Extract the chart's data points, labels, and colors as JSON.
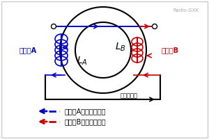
{
  "bg_color": "#ffffff",
  "border_color": "#cccccc",
  "radio_gxk_text": "Radio-GXK",
  "radio_gxk_color": "#aaaaaa",
  "coil_A_label": "コイルA",
  "coil_B_label": "コイルB",
  "current_label": "電流の向き",
  "legend_blue_label": "コイルAの作る磁力線",
  "legend_red_label": "コイルBの作る磁力線",
  "blue_color": "#0000cc",
  "red_color": "#cc0000",
  "black_color": "#000000",
  "gray_color": "#888888"
}
